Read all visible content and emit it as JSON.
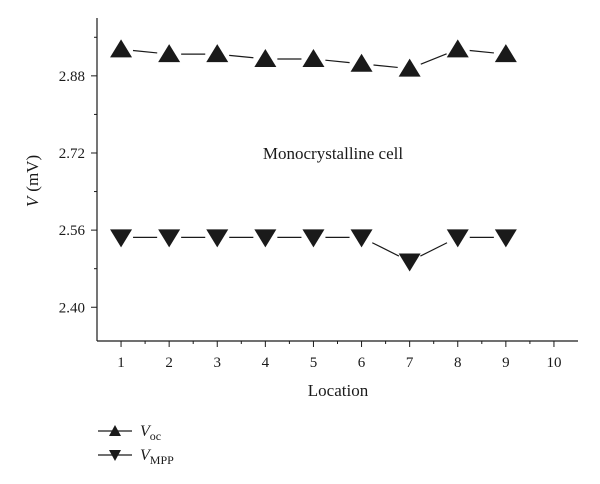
{
  "chart_data": {
    "type": "line",
    "title": "",
    "xlabel": "Location",
    "ylabel": {
      "symbol": "V",
      "unit": "(mV)"
    },
    "annotation": "Monocrystalline cell",
    "x": [
      1,
      2,
      3,
      4,
      5,
      6,
      7,
      8,
      9
    ],
    "xlim": [
      0.5,
      10.5
    ],
    "ylim": [
      2.33,
      3.0
    ],
    "x_ticks": [
      1,
      2,
      3,
      4,
      5,
      6,
      7,
      8,
      9,
      10
    ],
    "y_ticks": [
      "2.40",
      "2.56",
      "2.72",
      "2.88"
    ],
    "grid": false,
    "legend_position": "bottom-left, outside plot",
    "series": [
      {
        "name": {
          "main": "V",
          "sub": "oc"
        },
        "marker": "triangle-up",
        "color": "#1a1a1a",
        "values": [
          2.935,
          2.925,
          2.925,
          2.915,
          2.915,
          2.905,
          2.895,
          2.935,
          2.925
        ]
      },
      {
        "name": {
          "main": "V",
          "sub": "MPP"
        },
        "marker": "triangle-down",
        "color": "#1a1a1a",
        "values": [
          2.545,
          2.545,
          2.545,
          2.545,
          2.545,
          2.545,
          2.495,
          2.545,
          2.545
        ]
      }
    ]
  }
}
